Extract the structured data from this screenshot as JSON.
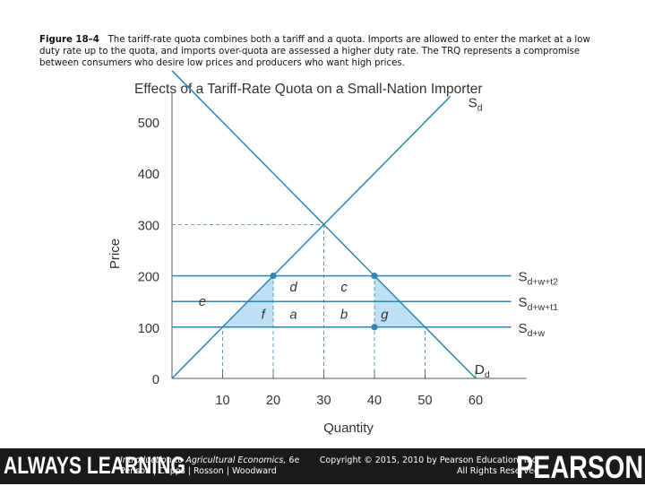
{
  "caption": {
    "label": "Figure 18–4",
    "text": "The tariff-rate quota combines both a tariff and a quota. Imports are allowed to enter the market at a low duty rate up to the quota, and imports over-quota are assessed a higher duty rate. The TRQ represents a compromise between consumers who desire low prices and producers who want high prices."
  },
  "chart_data": {
    "type": "line",
    "title": "Effects of a Tariff-Rate Quota on a Small-Nation Importer",
    "xlabel": "Quantity",
    "ylabel": "Price",
    "xlim": [
      0,
      70
    ],
    "ylim": [
      0,
      550
    ],
    "xticks": [
      10,
      20,
      30,
      40,
      50,
      60
    ],
    "yticks": [
      0,
      100,
      200,
      300,
      400,
      500
    ],
    "grid": false,
    "series": [
      {
        "name": "S_d",
        "label_main": "S",
        "label_sub": "d",
        "x": [
          0,
          55
        ],
        "y": [
          0,
          550
        ]
      },
      {
        "name": "D_d",
        "label_main": "D",
        "label_sub": "d",
        "x": [
          0,
          60
        ],
        "y": [
          600,
          0
        ]
      },
      {
        "name": "S_d+w+t2",
        "label_main": "S",
        "label_sub": "d+w+t2",
        "x": [
          0,
          67
        ],
        "y": [
          200,
          200
        ]
      },
      {
        "name": "S_d+w+t1",
        "label_main": "S",
        "label_sub": "d+w+t1",
        "x": [
          0,
          67
        ],
        "y": [
          150,
          150
        ]
      },
      {
        "name": "S_d+w",
        "label_main": "S",
        "label_sub": "d+w",
        "x": [
          0,
          67
        ],
        "y": [
          100,
          100
        ]
      }
    ],
    "dashed_guides": {
      "horizontal": [
        {
          "y": 300,
          "x_to": 30
        }
      ],
      "vertical": [
        {
          "x": 10,
          "y_to": 100
        },
        {
          "x": 20,
          "y_to": 200
        },
        {
          "x": 30,
          "y_to": 300
        },
        {
          "x": 40,
          "y_to": 200
        },
        {
          "x": 50,
          "y_to": 100
        }
      ]
    },
    "points": [
      {
        "x": 20,
        "y": 200
      },
      {
        "x": 40,
        "y": 200
      },
      {
        "x": 40,
        "y": 100
      }
    ],
    "shaded_regions": [
      {
        "name": "f",
        "polygon": [
          [
            10,
            100
          ],
          [
            20,
            100
          ],
          [
            20,
            200
          ]
        ]
      },
      {
        "name": "g",
        "polygon": [
          [
            40,
            100
          ],
          [
            50,
            100
          ],
          [
            40,
            200
          ]
        ]
      }
    ],
    "area_labels": [
      {
        "text": "d",
        "x": 24,
        "y": 178
      },
      {
        "text": "c",
        "x": 34,
        "y": 178
      },
      {
        "text": "a",
        "x": 24,
        "y": 125
      },
      {
        "text": "b",
        "x": 34,
        "y": 125
      },
      {
        "text": "f",
        "x": 18,
        "y": 125
      },
      {
        "text": "g",
        "x": 42,
        "y": 125
      },
      {
        "text": "e",
        "x": 6,
        "y": 150
      }
    ],
    "colors": {
      "line": "#2b86b4",
      "fill": "#bfe0f3",
      "text": "#333333",
      "axis": "#555555"
    }
  },
  "footer": {
    "brand_left": "ALWAYS LEARNING",
    "book_title": "Introduction to Agricultural Economics,",
    "book_edition": "6e",
    "book_authors": "Penson | Capps | Rosson | Woodward",
    "copyright": "Copyright © 2015, 2010 by Pearson Education, Inc.",
    "rights": "All Rights Reserved",
    "brand_right": "PEARSON"
  }
}
